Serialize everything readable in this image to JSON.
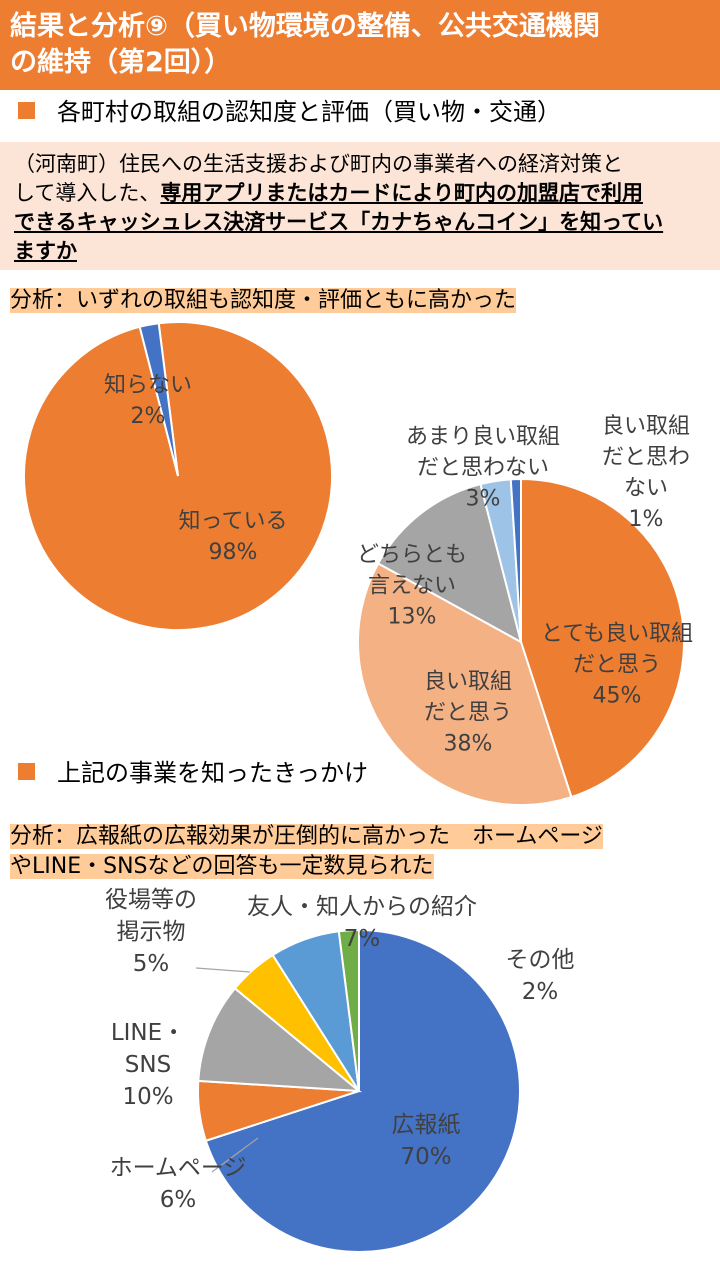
{
  "header": {
    "title_line1": "結果と分析⑨（買い物環境の整備、公共交通機関",
    "title_line2": "の維持（第2回））"
  },
  "section1": {
    "label": "各町村の取組の認知度と評価（買い物・交通）"
  },
  "question": {
    "line1": "（河南町）住民への生活支援および町内の事業者への経済対策と",
    "line2_plain": "して導入した、",
    "line2_em": "専用アプリまたはカードにより町内の加盟店で利用",
    "line3_em": "できるキャッシュレス決済サービス「カナちゃんコイン」を知ってい",
    "line4_em": "ますか"
  },
  "analysis1": {
    "text": "分析：いずれの取組も認知度・評価ともに高かった"
  },
  "section2": {
    "label": "上記の事業を知ったきっかけ"
  },
  "analysis2": {
    "line1": "分析：広報紙の広報効果が圧倒的に高かった　ホームページ",
    "line2": "やLINE・SNSなどの回答も一定数見られた"
  },
  "colors": {
    "accent": "#ED7D31",
    "question_bg": "#FCE4D6",
    "highlight": "#FFCC99"
  },
  "chart_data": [
    {
      "type": "pie",
      "series": [
        {
          "label_lines": [
            "知っている"
          ],
          "value": 98,
          "value_label": "98%",
          "color": "#ED7D31"
        },
        {
          "label_lines": [
            "知らない"
          ],
          "value": 2,
          "value_label": "2%",
          "color": "#4472C4"
        }
      ]
    },
    {
      "type": "pie",
      "series": [
        {
          "label_lines": [
            "とても良い取組",
            "だと思う"
          ],
          "value": 45,
          "value_label": "45%",
          "color": "#ED7D31"
        },
        {
          "label_lines": [
            "良い取組",
            "だと思う"
          ],
          "value": 38,
          "value_label": "38%",
          "color": "#F4B183"
        },
        {
          "label_lines": [
            "どちらとも",
            "言えない"
          ],
          "value": 13,
          "value_label": "13%",
          "color": "#A5A5A5"
        },
        {
          "label_lines": [
            "あまり良い取組",
            "だと思わない"
          ],
          "value": 3,
          "value_label": "3%",
          "color": "#9DC3E6"
        },
        {
          "label_lines": [
            "良い取組",
            "だと思わ",
            "ない"
          ],
          "value": 1,
          "value_label": "1%",
          "color": "#4472C4"
        }
      ]
    },
    {
      "type": "pie",
      "series": [
        {
          "label_lines": [
            "広報紙"
          ],
          "value": 70,
          "value_label": "70%",
          "color": "#4472C4"
        },
        {
          "label_lines": [
            "ホームページ"
          ],
          "value": 6,
          "value_label": "6%",
          "color": "#ED7D31"
        },
        {
          "label_lines": [
            "LINE・",
            "SNS"
          ],
          "value": 10,
          "value_label": "10%",
          "color": "#A5A5A5"
        },
        {
          "label_lines": [
            "役場等の",
            "掲示物"
          ],
          "value": 5,
          "value_label": "5%",
          "color": "#FFC000"
        },
        {
          "label_lines": [
            "友人・知人からの紹介"
          ],
          "value": 7,
          "value_label": "7%",
          "color": "#5B9BD5"
        },
        {
          "label_lines": [
            "その他"
          ],
          "value": 2,
          "value_label": "2%",
          "color": "#70AD47"
        }
      ]
    }
  ]
}
